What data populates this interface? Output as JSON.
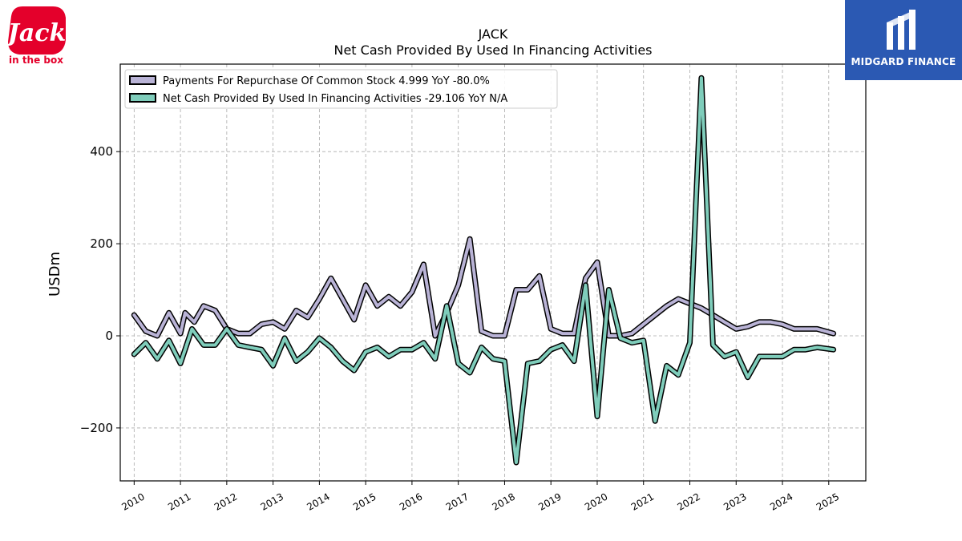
{
  "logos": {
    "left": {
      "icon": "jack-in-the-box-logo",
      "text": "in the box",
      "wordmark": "Jack",
      "color": "#e4002b"
    },
    "right": {
      "icon": "midgard-finance-logo",
      "text": "MIDGARD FINANCE",
      "color": "#2b59b3"
    }
  },
  "chart_data": {
    "type": "line",
    "title": "JACK",
    "subtitle": "Net Cash Provided By Used In Financing Activities",
    "xlabel": "",
    "ylabel": "USDm",
    "xlim": [
      2009.7,
      2025.8
    ],
    "ylim": [
      -315,
      590
    ],
    "xticks": [
      "2010",
      "2011",
      "2012",
      "2013",
      "2014",
      "2015",
      "2016",
      "2017",
      "2018",
      "2019",
      "2020",
      "2021",
      "2022",
      "2023",
      "2024",
      "2025"
    ],
    "yticks": [
      -200,
      0,
      200,
      400
    ],
    "grid": true,
    "legend_position": "top-left",
    "series": [
      {
        "name": "Payments For Repurchase Of Common Stock",
        "legend": "Payments For Repurchase Of Common Stock  4.999 YoY -80.0%",
        "color": "#b9b3d6",
        "points": [
          [
            2010.0,
            45
          ],
          [
            2010.25,
            10
          ],
          [
            2010.5,
            0
          ],
          [
            2010.75,
            50
          ],
          [
            2011.0,
            5
          ],
          [
            2011.1,
            50
          ],
          [
            2011.3,
            30
          ],
          [
            2011.5,
            65
          ],
          [
            2011.75,
            55
          ],
          [
            2012.0,
            15
          ],
          [
            2012.25,
            5
          ],
          [
            2012.5,
            5
          ],
          [
            2012.75,
            25
          ],
          [
            2013.0,
            30
          ],
          [
            2013.25,
            15
          ],
          [
            2013.5,
            55
          ],
          [
            2013.75,
            40
          ],
          [
            2014.0,
            80
          ],
          [
            2014.25,
            125
          ],
          [
            2014.5,
            80
          ],
          [
            2014.75,
            35
          ],
          [
            2015.0,
            110
          ],
          [
            2015.25,
            65
          ],
          [
            2015.5,
            85
          ],
          [
            2015.75,
            65
          ],
          [
            2016.0,
            95
          ],
          [
            2016.25,
            155
          ],
          [
            2016.5,
            0
          ],
          [
            2016.75,
            50
          ],
          [
            2017.0,
            110
          ],
          [
            2017.25,
            210
          ],
          [
            2017.5,
            10
          ],
          [
            2017.75,
            0
          ],
          [
            2018.0,
            0
          ],
          [
            2018.25,
            100
          ],
          [
            2018.5,
            100
          ],
          [
            2018.75,
            130
          ],
          [
            2019.0,
            15
          ],
          [
            2019.25,
            5
          ],
          [
            2019.5,
            5
          ],
          [
            2019.75,
            125
          ],
          [
            2020.0,
            160
          ],
          [
            2020.25,
            0
          ],
          [
            2020.5,
            0
          ],
          [
            2020.75,
            5
          ],
          [
            2021.0,
            25
          ],
          [
            2021.25,
            45
          ],
          [
            2021.5,
            65
          ],
          [
            2021.75,
            80
          ],
          [
            2022.0,
            70
          ],
          [
            2022.25,
            60
          ],
          [
            2022.5,
            45
          ],
          [
            2022.75,
            30
          ],
          [
            2023.0,
            15
          ],
          [
            2023.25,
            20
          ],
          [
            2023.5,
            30
          ],
          [
            2023.75,
            30
          ],
          [
            2024.0,
            25
          ],
          [
            2024.25,
            15
          ],
          [
            2024.5,
            15
          ],
          [
            2024.75,
            15
          ],
          [
            2025.1,
            5
          ]
        ]
      },
      {
        "name": "Net Cash Provided By Used In Financing Activities",
        "legend": "Net Cash Provided By Used In Financing Activities  -29.106 YoY N/A",
        "color": "#7fcdbb",
        "points": [
          [
            2010.0,
            -40
          ],
          [
            2010.25,
            -15
          ],
          [
            2010.5,
            -50
          ],
          [
            2010.75,
            -10
          ],
          [
            2011.0,
            -60
          ],
          [
            2011.25,
            15
          ],
          [
            2011.5,
            -20
          ],
          [
            2011.75,
            -20
          ],
          [
            2012.0,
            15
          ],
          [
            2012.25,
            -20
          ],
          [
            2012.5,
            -25
          ],
          [
            2012.75,
            -30
          ],
          [
            2013.0,
            -65
          ],
          [
            2013.25,
            -5
          ],
          [
            2013.5,
            -55
          ],
          [
            2013.75,
            -35
          ],
          [
            2014.0,
            -5
          ],
          [
            2014.25,
            -25
          ],
          [
            2014.5,
            -55
          ],
          [
            2014.75,
            -75
          ],
          [
            2015.0,
            -35
          ],
          [
            2015.25,
            -25
          ],
          [
            2015.5,
            -45
          ],
          [
            2015.75,
            -30
          ],
          [
            2016.0,
            -30
          ],
          [
            2016.25,
            -15
          ],
          [
            2016.5,
            -50
          ],
          [
            2016.75,
            65
          ],
          [
            2017.0,
            -60
          ],
          [
            2017.25,
            -80
          ],
          [
            2017.5,
            -25
          ],
          [
            2017.75,
            -50
          ],
          [
            2018.0,
            -55
          ],
          [
            2018.25,
            -275
          ],
          [
            2018.5,
            -60
          ],
          [
            2018.75,
            -55
          ],
          [
            2019.0,
            -30
          ],
          [
            2019.25,
            -20
          ],
          [
            2019.5,
            -55
          ],
          [
            2019.75,
            110
          ],
          [
            2020.0,
            -175
          ],
          [
            2020.25,
            100
          ],
          [
            2020.5,
            -5
          ],
          [
            2020.75,
            -15
          ],
          [
            2021.0,
            -10
          ],
          [
            2021.25,
            -185
          ],
          [
            2021.5,
            -65
          ],
          [
            2021.75,
            -85
          ],
          [
            2022.0,
            -15
          ],
          [
            2022.25,
            560
          ],
          [
            2022.5,
            -20
          ],
          [
            2022.75,
            -45
          ],
          [
            2023.0,
            -35
          ],
          [
            2023.25,
            -90
          ],
          [
            2023.5,
            -45
          ],
          [
            2023.75,
            -45
          ],
          [
            2024.0,
            -45
          ],
          [
            2024.25,
            -30
          ],
          [
            2024.5,
            -30
          ],
          [
            2024.75,
            -25
          ],
          [
            2025.1,
            -30
          ]
        ]
      }
    ]
  }
}
